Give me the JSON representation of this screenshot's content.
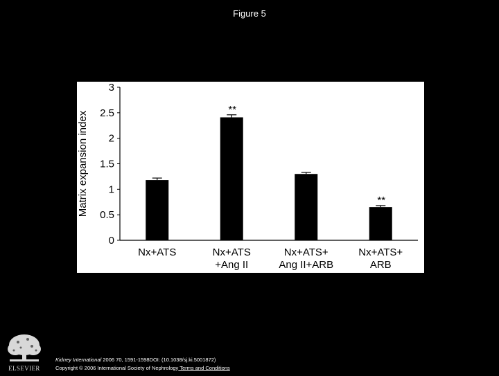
{
  "slide": {
    "title": "Figure 5"
  },
  "chart_data": {
    "type": "bar",
    "ylabel": "Matrix expansion index",
    "xlabel": "",
    "ylim": [
      0,
      3
    ],
    "yticks": [
      0,
      0.5,
      1,
      1.5,
      2,
      2.5,
      3
    ],
    "ytick_labels": [
      "0",
      "0.5",
      "1",
      "1.5",
      "2",
      "2.5",
      "3"
    ],
    "categories": [
      [
        "Nx+ATS"
      ],
      [
        "Nx+ATS",
        "+Ang II"
      ],
      [
        "Nx+ATS+",
        "Ang II+ARB"
      ],
      [
        "Nx+ATS+",
        "ARB"
      ]
    ],
    "values": [
      1.18,
      2.41,
      1.3,
      0.65
    ],
    "errors": [
      0.04,
      0.05,
      0.03,
      0.03
    ],
    "annotations": [
      "",
      "**",
      "",
      "**"
    ],
    "bar_color": "#000000",
    "grid": false,
    "legend": "none"
  },
  "footer": {
    "journal": "Kidney International",
    "citation_rest": " 2006 70, 1591-1598DOI: (10.1038/sj.ki.5001872)",
    "copyright": "Copyright © 2006 International Society of Nephrology",
    "terms_link": " Terms and Conditions",
    "publisher_logo_text": "ELSEVIER"
  }
}
